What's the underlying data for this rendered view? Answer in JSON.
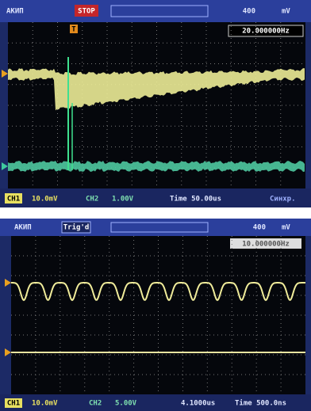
{
  "screens": [
    {
      "top_bar": {
        "brand": "АКИП",
        "status": "STOP",
        "trigger_level": "400",
        "trigger_unit": "mV",
        "trigger_marker": "T"
      },
      "frequency": "20.000000Hz",
      "bottom_bar": {
        "ch1": "CH1",
        "ch1_scale": "10.0mV",
        "ch2": "CH2",
        "ch2_scale": "1.00V",
        "time": "Time 50.00us",
        "menu": "Синхр."
      }
    },
    {
      "top_bar": {
        "brand": "АКИП",
        "status": "Trig'd",
        "trigger_level": "400",
        "trigger_unit": "mV"
      },
      "frequency": "10.000000Hz",
      "bottom_bar": {
        "ch1": "CH1",
        "ch1_scale": "10.0mV",
        "ch2": "CH2",
        "ch2_scale": "5.00V",
        "offset": "4.1000us",
        "time": "Time 500.0ns"
      }
    }
  ]
}
